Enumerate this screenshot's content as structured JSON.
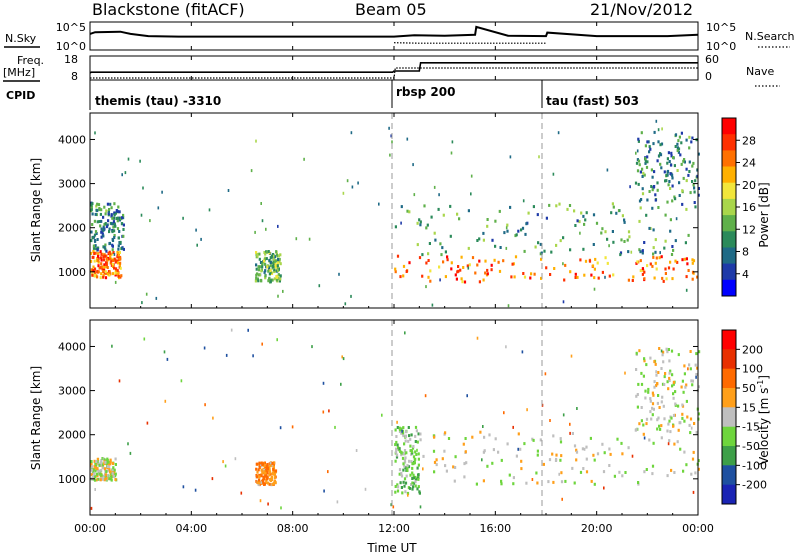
{
  "header": {
    "station": "Blackstone (fitACF)",
    "beam": "Beam 05",
    "date": "21/Nov/2012"
  },
  "noise_panel": {
    "left_label": "N.Sky",
    "right_label": "N.Search",
    "left_ticks": [
      "10^5",
      "10^0"
    ],
    "right_ticks": [
      "10^5",
      "10^0"
    ]
  },
  "freq_panel": {
    "left_label_1": "Freq.",
    "left_label_2": "[MHz]",
    "right_label": "Nave",
    "left_ticks": [
      "18",
      "8"
    ],
    "right_ticks": [
      "60",
      "0"
    ]
  },
  "cpid_panel": {
    "label": "CPID",
    "modes": [
      "themis (tau) -3310",
      "rbsp 200",
      "tau (fast) 503"
    ]
  },
  "power_colorbar": {
    "label": "Power [dB]",
    "ticks": [
      "28",
      "24",
      "20",
      "16",
      "12",
      "8",
      "4"
    ],
    "colors": [
      "#0000ff",
      "#1e3aa8",
      "#1f6a86",
      "#2b8a5a",
      "#5fb04a",
      "#a9d64b",
      "#f2e63b",
      "#ffb000",
      "#ff7000",
      "#ff3000",
      "#ff0000"
    ]
  },
  "velocity_colorbar": {
    "label": "Velocity [m s",
    "label_sup": "-1",
    "label_end": "]",
    "ticks": [
      "200",
      "100",
      "50",
      "15",
      "-15",
      "-50",
      "-100",
      "-200"
    ],
    "colors": [
      "#1a24b4",
      "#1e50a0",
      "#3d9f48",
      "#6ed53d",
      "#bfbfbf",
      "#ff9f1a",
      "#ff6a00",
      "#e83000",
      "#ff0000"
    ]
  },
  "chart_data": [
    {
      "type": "line",
      "panel": "noise",
      "ylabel": "N.Sky",
      "x_ticks": [
        "00:00",
        "04:00",
        "08:00",
        "12:00",
        "16:00",
        "20:00",
        "00:00"
      ],
      "series": [
        {
          "name": "N.Sky",
          "x": [
            0,
            0.2,
            1.2,
            1.6,
            2.3,
            3.5,
            6,
            9,
            12,
            12.8,
            14,
            15.2,
            15.25,
            16.5,
            18,
            18.05,
            20,
            22.8,
            24
          ],
          "y": [
            3.2,
            3.6,
            3.7,
            3.2,
            2.7,
            2.6,
            2.6,
            2.6,
            2.6,
            2.9,
            2.8,
            3.0,
            4.8,
            2.8,
            2.7,
            3.5,
            2.7,
            2.7,
            3.0
          ]
        },
        {
          "name": "N.Search",
          "x": [
            12,
            13,
            14,
            15,
            16,
            17,
            18
          ],
          "y": [
            1.2,
            1.1,
            1.1,
            1.1,
            1.1,
            1.1,
            1.1
          ]
        }
      ]
    },
    {
      "type": "line",
      "panel": "frequency",
      "ylabel": "Freq. [MHz]",
      "series": [
        {
          "name": "Freq.",
          "x": [
            0,
            0.05,
            11.95,
            12.0,
            13.0,
            13.05,
            24
          ],
          "y": [
            10.5,
            10.9,
            10.9,
            11.5,
            11.5,
            15.6,
            15.6
          ]
        },
        {
          "name": "Nave",
          "x": [
            0,
            12,
            12.05,
            24
          ],
          "y": [
            0,
            0,
            0.5,
            0.5
          ]
        }
      ]
    },
    {
      "type": "heatmap",
      "panel": "power",
      "ylabel": "Slant Range [km]",
      "xlabel": "Time UT",
      "x_ticks": [
        "00:00",
        "04:00",
        "08:00",
        "12:00",
        "16:00",
        "20:00",
        "00:00"
      ],
      "y_ticks": [
        "1000",
        "2000",
        "3000",
        "4000"
      ],
      "xlim": [
        0,
        24
      ],
      "ylim": [
        180,
        4600
      ],
      "echo_regions": [
        {
          "x": [
            0.0,
            1.2
          ],
          "y": [
            900,
            1500
          ],
          "value_db": 24
        },
        {
          "x": [
            0.0,
            1.3
          ],
          "y": [
            1500,
            2600
          ],
          "value_db": 8
        },
        {
          "x": [
            6.5,
            7.5
          ],
          "y": [
            800,
            1500
          ],
          "value_db": 12
        },
        {
          "x": [
            12.0,
            24.0
          ],
          "y": [
            800,
            1400
          ],
          "value_db": 24
        },
        {
          "x": [
            12.0,
            24.0
          ],
          "y": [
            1400,
            2600
          ],
          "value_db": 10
        },
        {
          "x": [
            21.5,
            24.0
          ],
          "y": [
            2600,
            4200
          ],
          "value_db": 8
        }
      ]
    },
    {
      "type": "heatmap",
      "panel": "velocity",
      "ylabel": "Slant Range [km]",
      "xlabel": "Time UT",
      "x_ticks": [
        "00:00",
        "04:00",
        "08:00",
        "12:00",
        "16:00",
        "20:00",
        "00:00"
      ],
      "y_ticks": [
        "1000",
        "2000",
        "3000",
        "4000"
      ],
      "xlim": [
        0,
        24
      ],
      "ylim": [
        180,
        4600
      ],
      "echo_regions": [
        {
          "x": [
            0.0,
            1.0
          ],
          "y": [
            1000,
            1500
          ],
          "value_ms": 0
        },
        {
          "x": [
            6.5,
            7.3
          ],
          "y": [
            900,
            1400
          ],
          "value_ms": -50
        },
        {
          "x": [
            12.0,
            13.0
          ],
          "y": [
            700,
            2200
          ],
          "value_ms": 30
        },
        {
          "x": [
            13.0,
            24.0
          ],
          "y": [
            900,
            2100
          ],
          "value_ms": 0
        },
        {
          "x": [
            21.5,
            24.0
          ],
          "y": [
            2100,
            4000
          ],
          "value_ms": 0
        }
      ]
    }
  ],
  "axis": {
    "xlabel": "Time UT",
    "ylabel": "Slant Range [km]"
  }
}
